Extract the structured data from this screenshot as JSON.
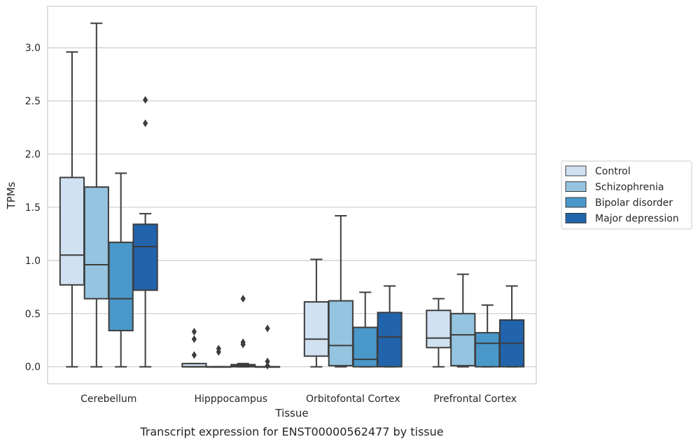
{
  "chart_data": {
    "type": "boxplot",
    "caption": "Transcript expression for ENST00000562477 by tissue",
    "xlabel": "Tissue",
    "ylabel": "TPMs",
    "ylim": [
      -0.16,
      3.39
    ],
    "yticks": [
      0.0,
      0.5,
      1.0,
      1.5,
      2.0,
      2.5,
      3.0
    ],
    "ytick_labels": [
      "0.0",
      "0.5",
      "1.0",
      "1.5",
      "2.0",
      "2.5",
      "3.0"
    ],
    "grid": "horizontal",
    "legend_position": "right",
    "categories": [
      "Cerebellum",
      "Hipppocampus",
      "Orbitofontal Cortex",
      "Prefrontal Cortex"
    ],
    "series": [
      {
        "name": "Control",
        "color": "#d0e1f2",
        "boxes": [
          {
            "whislo": 0.0,
            "q1": 0.77,
            "med": 1.05,
            "q3": 1.78,
            "whishi": 2.96,
            "fliers": []
          },
          {
            "whislo": 0.0,
            "q1": 0.0,
            "med": 0.0,
            "q3": 0.03,
            "whishi": 0.03,
            "fliers": [
              0.11,
              0.26,
              0.33
            ]
          },
          {
            "whislo": 0.0,
            "q1": 0.1,
            "med": 0.26,
            "q3": 0.61,
            "whishi": 1.01,
            "fliers": []
          },
          {
            "whislo": 0.0,
            "q1": 0.18,
            "med": 0.27,
            "q3": 0.53,
            "whishi": 0.64,
            "fliers": []
          }
        ]
      },
      {
        "name": "Schizophrenia",
        "color": "#94c4df",
        "boxes": [
          {
            "whislo": 0.0,
            "q1": 0.64,
            "med": 0.96,
            "q3": 1.69,
            "whishi": 3.23,
            "fliers": []
          },
          {
            "whislo": 0.0,
            "q1": 0.0,
            "med": 0.0,
            "q3": 0.0,
            "whishi": 0.0,
            "fliers": [
              0.14,
              0.17
            ]
          },
          {
            "whislo": 0.0,
            "q1": 0.01,
            "med": 0.2,
            "q3": 0.62,
            "whishi": 1.42,
            "fliers": []
          },
          {
            "whislo": 0.0,
            "q1": 0.01,
            "med": 0.3,
            "q3": 0.5,
            "whishi": 0.87,
            "fliers": []
          }
        ]
      },
      {
        "name": "Bipolar disorder",
        "color": "#4a98c9",
        "boxes": [
          {
            "whislo": 0.0,
            "q1": 0.34,
            "med": 0.64,
            "q3": 1.17,
            "whishi": 1.82,
            "fliers": []
          },
          {
            "whislo": 0.0,
            "q1": 0.0,
            "med": 0.01,
            "q3": 0.02,
            "whishi": 0.03,
            "fliers": [
              0.21,
              0.23,
              0.64
            ]
          },
          {
            "whislo": 0.0,
            "q1": 0.0,
            "med": 0.07,
            "q3": 0.37,
            "whishi": 0.7,
            "fliers": []
          },
          {
            "whislo": 0.0,
            "q1": 0.0,
            "med": 0.22,
            "q3": 0.32,
            "whishi": 0.58,
            "fliers": []
          }
        ]
      },
      {
        "name": "Major depression",
        "color": "#2164ab",
        "boxes": [
          {
            "whislo": 0.0,
            "q1": 0.72,
            "med": 1.13,
            "q3": 1.34,
            "whishi": 1.44,
            "fliers": [
              2.29,
              2.51
            ]
          },
          {
            "whislo": 0.0,
            "q1": 0.0,
            "med": 0.0,
            "q3": 0.0,
            "whishi": 0.0,
            "fliers": [
              0.01,
              0.05,
              0.36
            ]
          },
          {
            "whislo": 0.0,
            "q1": 0.0,
            "med": 0.28,
            "q3": 0.51,
            "whishi": 0.76,
            "fliers": []
          },
          {
            "whislo": 0.0,
            "q1": 0.0,
            "med": 0.22,
            "q3": 0.44,
            "whishi": 0.76,
            "fliers": []
          }
        ]
      }
    ]
  }
}
